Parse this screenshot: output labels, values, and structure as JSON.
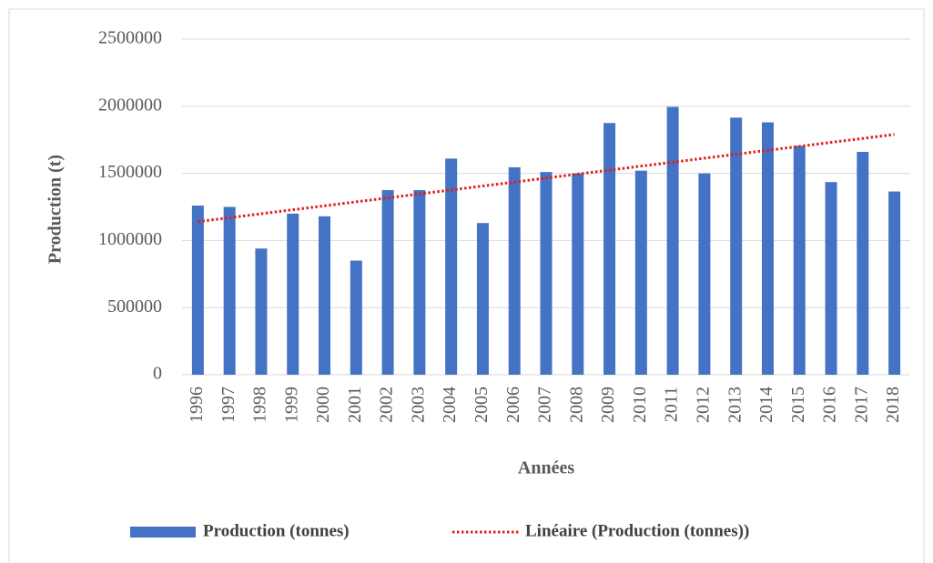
{
  "chart_data": {
    "type": "bar",
    "x_label": "Années",
    "y_label": "Production (t)",
    "categories": [
      "1996",
      "1997",
      "1998",
      "1999",
      "2000",
      "2001",
      "2002",
      "2003",
      "2004",
      "2005",
      "2006",
      "2007",
      "2008",
      "2009",
      "2010",
      "2011",
      "2012",
      "2013",
      "2014",
      "2015",
      "2016",
      "2017",
      "2018"
    ],
    "series": [
      {
        "name": "Production (tonnes)",
        "type": "bar",
        "color": "#4472c4",
        "values": [
          1260000,
          1250000,
          940000,
          1200000,
          1180000,
          850000,
          1375000,
          1375000,
          1610000,
          1130000,
          1545000,
          1510000,
          1500000,
          1875000,
          1520000,
          1995000,
          1500000,
          1915000,
          1880000,
          1705000,
          1435000,
          1660000,
          1365000
        ]
      },
      {
        "name": "Linéaire (Production (tonnes))",
        "type": "line",
        "dash": "dotted",
        "color": "#e0201b",
        "values": [
          1140000,
          1170000,
          1199000,
          1229000,
          1258000,
          1288000,
          1317000,
          1347000,
          1376000,
          1406000,
          1435000,
          1465000,
          1495000,
          1524000,
          1554000,
          1583000,
          1613000,
          1642000,
          1672000,
          1701000,
          1731000,
          1760000,
          1790000
        ]
      }
    ],
    "ylim": [
      0,
      2500000
    ],
    "yticks": [
      0,
      500000,
      1000000,
      1500000,
      2000000,
      2500000
    ],
    "grid": true,
    "legend": "bottom"
  }
}
